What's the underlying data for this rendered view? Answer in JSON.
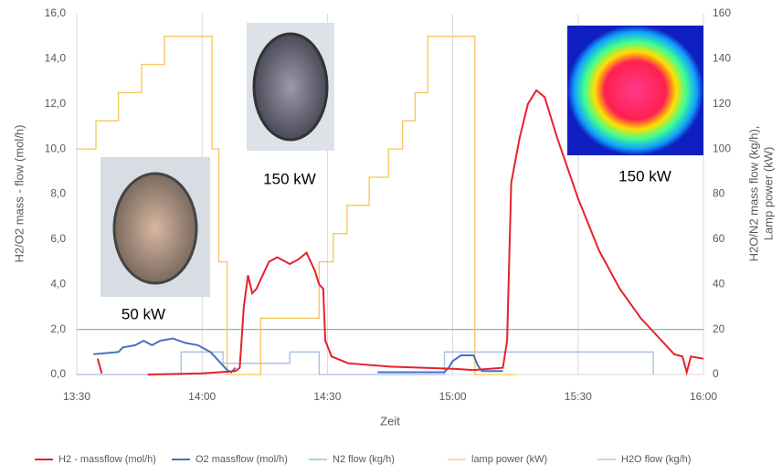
{
  "chart_data": {
    "type": "line",
    "y_label": "H2/O2 mass - flow (mol/h)",
    "y2_label": [
      "H2O/N2 mass flow (kg/h),",
      "Lamp power (kW)"
    ],
    "x_label": "Zeit",
    "xlim": [
      810,
      960
    ],
    "xticks": [
      {
        "value": 810,
        "label": "13:30"
      },
      {
        "value": 840,
        "label": "14:00"
      },
      {
        "value": 870,
        "label": "14:30"
      },
      {
        "value": 900,
        "label": "15:00"
      },
      {
        "value": 930,
        "label": "15:30"
      },
      {
        "value": 960,
        "label": "16:00"
      }
    ],
    "ylim": [
      0,
      16
    ],
    "yticks": [
      {
        "value": 0,
        "label": "0,0"
      },
      {
        "value": 2,
        "label": "2,0"
      },
      {
        "value": 4,
        "label": "4,0"
      },
      {
        "value": 6,
        "label": "6,0"
      },
      {
        "value": 8,
        "label": "8,0"
      },
      {
        "value": 10,
        "label": "10,0"
      },
      {
        "value": 12,
        "label": "12,0"
      },
      {
        "value": 14,
        "label": "14,0"
      },
      {
        "value": 16,
        "label": "16,0"
      }
    ],
    "y2lim": [
      0,
      160
    ],
    "y2ticks": [
      0,
      20,
      40,
      60,
      80,
      100,
      120,
      140,
      160
    ],
    "grid": "x",
    "annotations": [
      "50 kW",
      "150 kW",
      "150 kW"
    ],
    "series": [
      {
        "name": "H2 - massflow (mol/h)",
        "color": "#e8202a",
        "axis": "y",
        "x": [
          815,
          816,
          820,
          827,
          840,
          848,
          849,
          850,
          851,
          852,
          853,
          854,
          856,
          858,
          860,
          861,
          863,
          865,
          866,
          867,
          868,
          869,
          869.5,
          871,
          875,
          885,
          900,
          905,
          912,
          913,
          914,
          916,
          918,
          920,
          922,
          925,
          930,
          935,
          940,
          945,
          950,
          953,
          955,
          956,
          957,
          960
        ],
        "values": [
          0.7,
          0.05,
          null,
          0,
          0.05,
          0.15,
          0.3,
          3.0,
          4.4,
          3.6,
          3.8,
          4.2,
          5.0,
          5.2,
          5.0,
          4.9,
          5.1,
          5.4,
          5.0,
          4.6,
          4.0,
          3.8,
          1.5,
          0.8,
          0.5,
          0.35,
          0.25,
          0.2,
          0.3,
          1.5,
          8.5,
          10.5,
          12.0,
          12.6,
          12.3,
          10.5,
          7.8,
          5.5,
          3.8,
          2.5,
          1.5,
          0.9,
          0.8,
          0.1,
          0.8,
          0.7
        ]
      },
      {
        "name": "O2  massflow (mol/h)",
        "color": "#4472c4",
        "axis": "y",
        "x": [
          814,
          820,
          821,
          824,
          826,
          828,
          830,
          833,
          836,
          839,
          842,
          844,
          846,
          847,
          848,
          850,
          882,
          898,
          899,
          900,
          902,
          905,
          906,
          907,
          912
        ],
        "values": [
          0.9,
          1.0,
          1.2,
          1.3,
          1.5,
          1.3,
          1.5,
          1.6,
          1.4,
          1.3,
          1.0,
          0.6,
          0.2,
          0.1,
          0.3,
          null,
          0.1,
          0.1,
          0.3,
          0.6,
          0.85,
          0.85,
          0.4,
          0.15,
          0.15
        ]
      },
      {
        "name": "N2 flow (kg/h)",
        "color": "#70c7a0",
        "axis": "y2",
        "x": [
          810,
          960
        ],
        "values": [
          20,
          20
        ]
      },
      {
        "name": "lamp power (kW)",
        "color": "#f5c55a",
        "axis": "y2",
        "x": [
          810,
          814.6,
          814.6,
          820,
          820,
          825.5,
          825.5,
          831,
          831,
          842.4,
          842.4,
          844,
          844,
          846,
          846,
          854,
          854,
          868,
          868,
          871.4,
          871.4,
          874.7,
          874.7,
          880,
          880,
          884.6,
          884.6,
          888,
          888,
          891,
          891,
          894,
          894,
          905.3,
          905.3,
          915
        ],
        "values": [
          100,
          100,
          112.5,
          112.5,
          125,
          125,
          137.5,
          137.5,
          150,
          150,
          100,
          100,
          50,
          50,
          0,
          0,
          25,
          25,
          50,
          50,
          62.5,
          62.5,
          75,
          75,
          87.5,
          87.5,
          100,
          100,
          112.5,
          112.5,
          125,
          125,
          150,
          150,
          0,
          0
        ]
      },
      {
        "name": "H2O flow (kg/h)",
        "color": "#a9bce6",
        "axis": "y2",
        "x": [
          810,
          835,
          835,
          845,
          845,
          861,
          861,
          868,
          868,
          898,
          898,
          948,
          948
        ],
        "values": [
          0,
          0,
          10,
          10,
          5,
          5,
          10,
          10,
          0,
          0,
          10,
          10,
          0
        ]
      }
    ]
  }
}
